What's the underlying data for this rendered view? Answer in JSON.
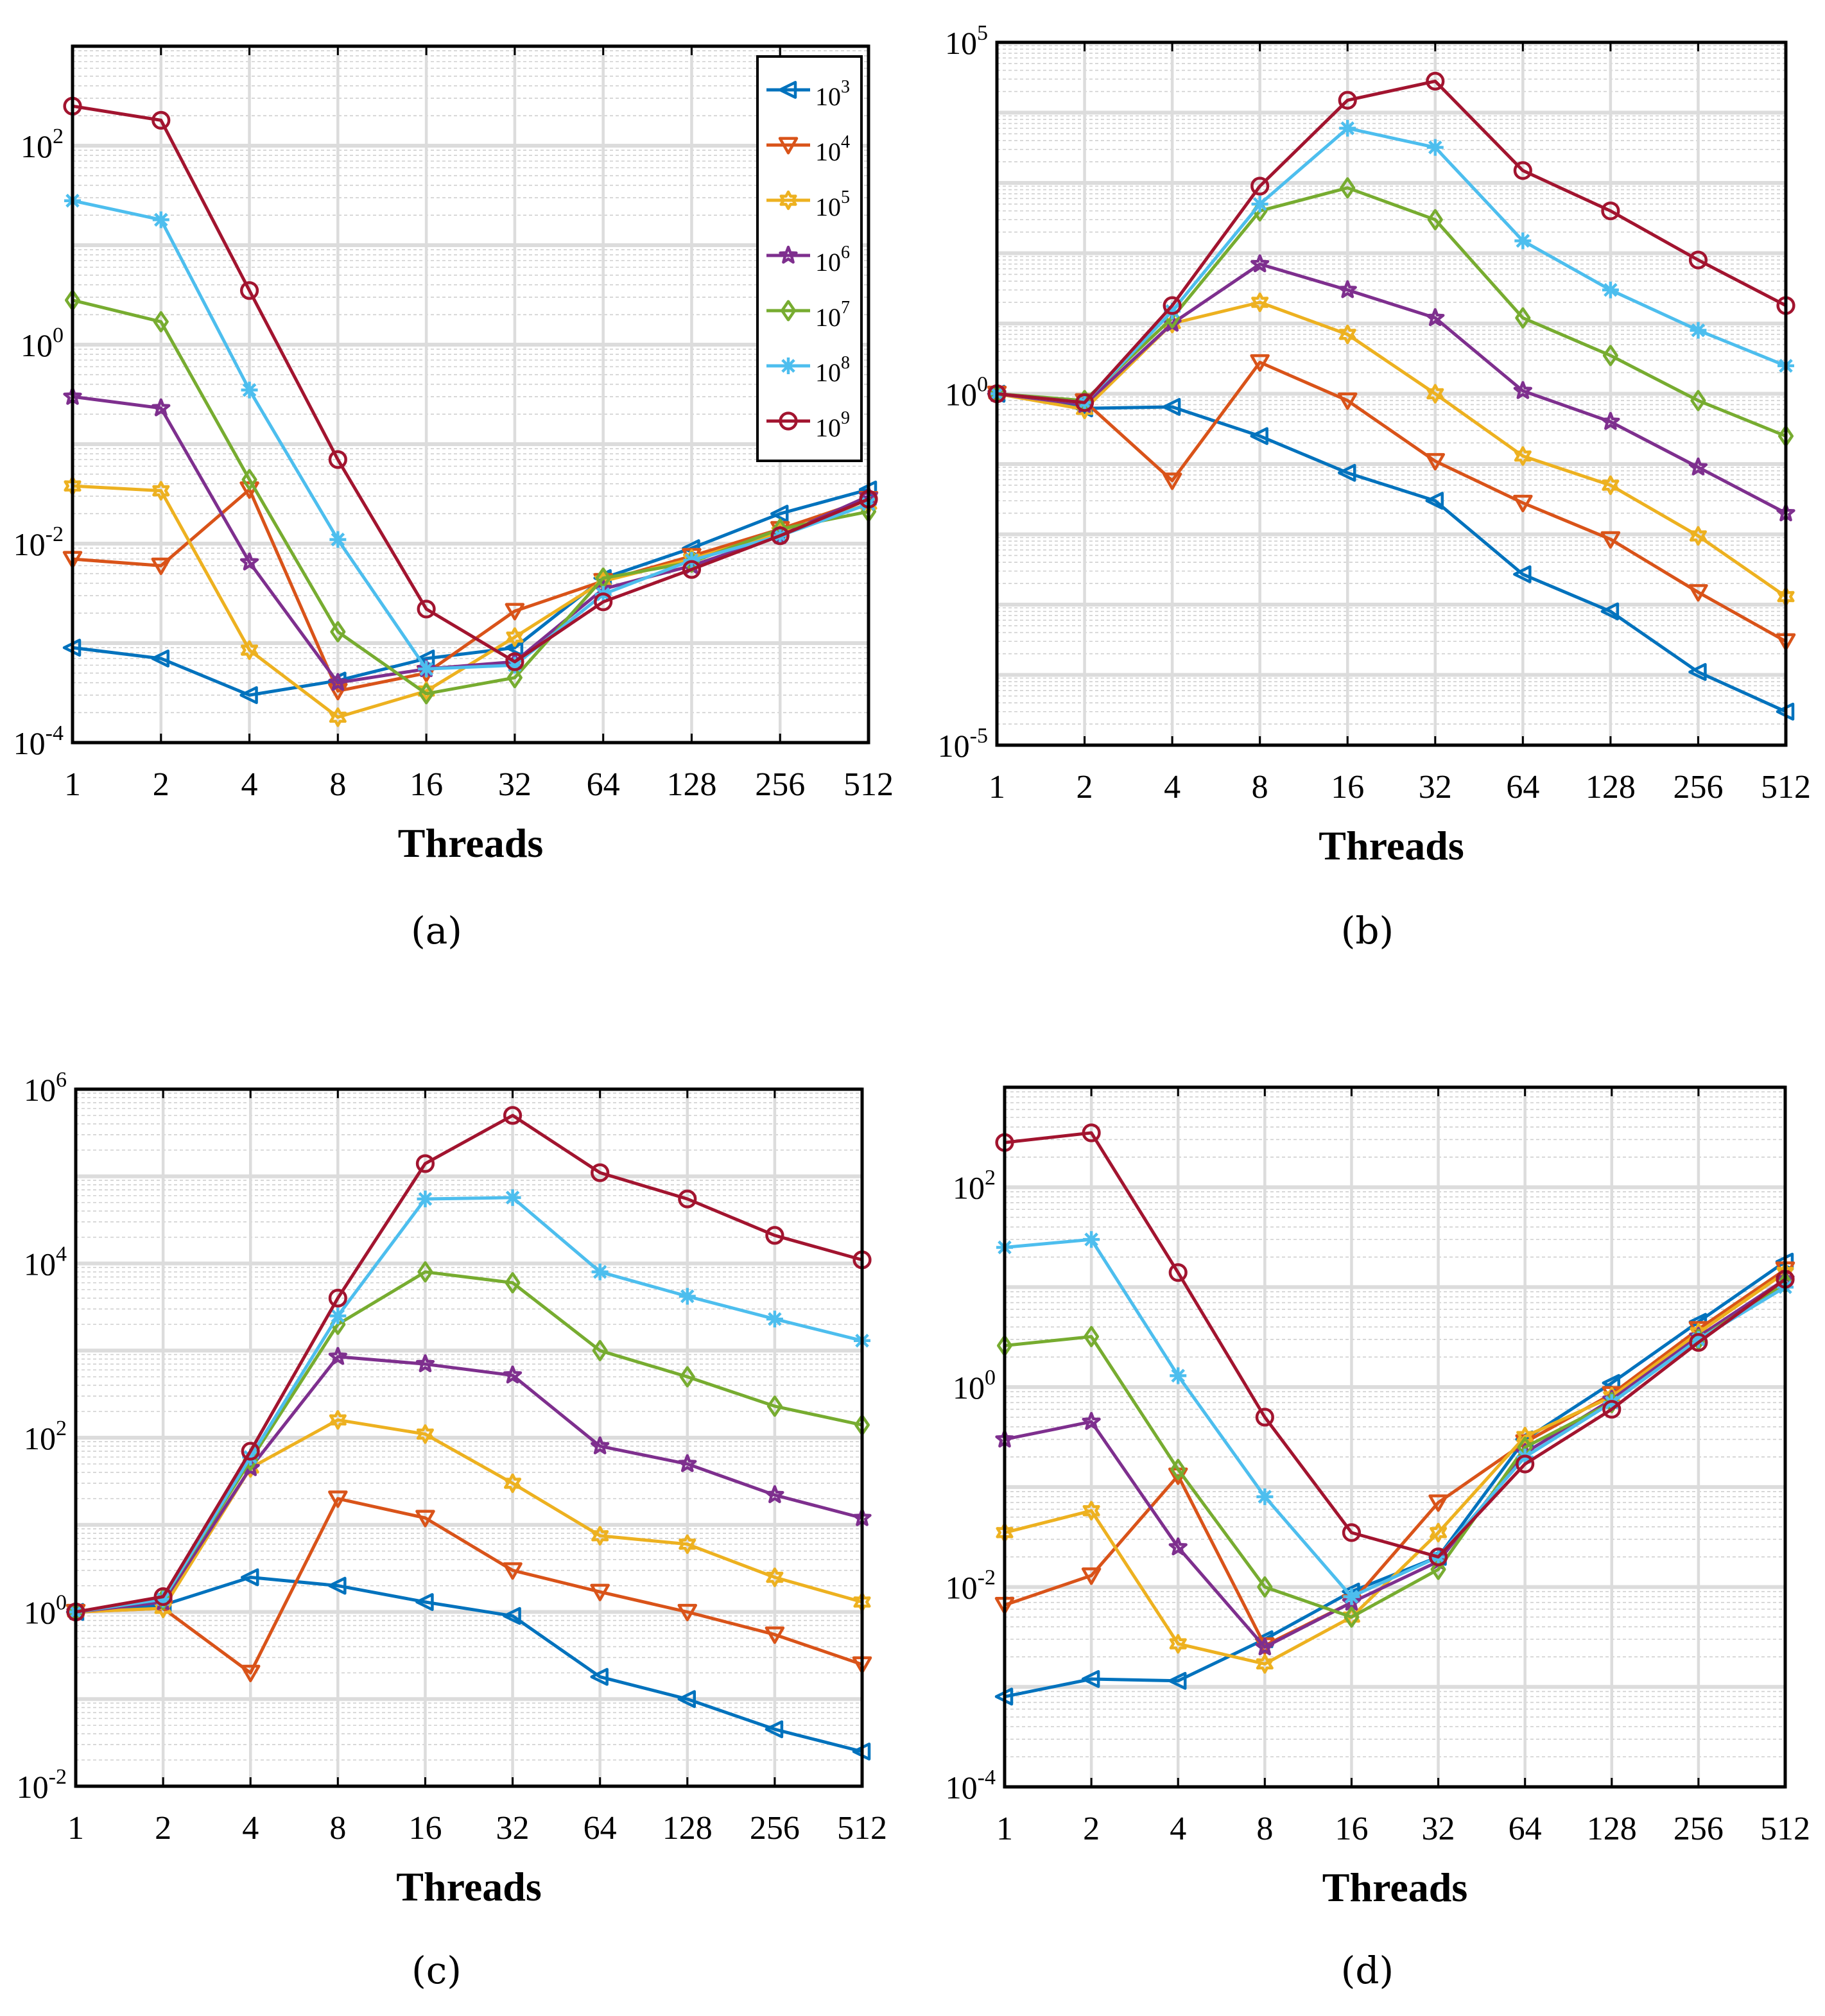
{
  "legend": {
    "position": "top-right of panel (a)",
    "entries": [
      {
        "base": "10",
        "exp": "3",
        "color": "#0072BD",
        "marker": "triangle-left"
      },
      {
        "base": "10",
        "exp": "4",
        "color": "#D95319",
        "marker": "triangle-down"
      },
      {
        "base": "10",
        "exp": "5",
        "color": "#EDB120",
        "marker": "hexagram"
      },
      {
        "base": "10",
        "exp": "6",
        "color": "#7E2F8E",
        "marker": "pentagram"
      },
      {
        "base": "10",
        "exp": "7",
        "color": "#77AC30",
        "marker": "diamond"
      },
      {
        "base": "10",
        "exp": "8",
        "color": "#4DBEEE",
        "marker": "asterisk"
      },
      {
        "base": "10",
        "exp": "9",
        "color": "#A2142F",
        "marker": "circle"
      }
    ]
  },
  "chart_data": [
    {
      "type": "line",
      "panel_label": "(a)",
      "xlabel": "Threads",
      "ylabel": "",
      "x": [
        1,
        2,
        4,
        8,
        16,
        32,
        64,
        128,
        256,
        512
      ],
      "x_tick_labels": [
        "1",
        "2",
        "4",
        "8",
        "16",
        "32",
        "64",
        "128",
        "256",
        "512"
      ],
      "yscale": "log",
      "ylim": [
        0.0001,
        1000
      ],
      "y_ticks": [
        {
          "base": "10",
          "exp": "-4",
          "value": 0.0001
        },
        {
          "base": "10",
          "exp": "-2",
          "value": 0.01
        },
        {
          "base": "10",
          "exp": "0",
          "value": 1
        },
        {
          "base": "10",
          "exp": "2",
          "value": 100
        }
      ],
      "grid": true,
      "series": [
        {
          "values": [
            0.0009,
            0.0007,
            0.0003,
            0.00042,
            0.0007,
            0.0009,
            0.0045,
            0.009,
            0.02,
            0.035
          ]
        },
        {
          "values": [
            0.007,
            0.006,
            0.035,
            0.00033,
            0.0005,
            0.0021,
            0.0042,
            0.0075,
            0.014,
            0.028
          ]
        },
        {
          "values": [
            0.038,
            0.034,
            0.00085,
            0.00018,
            0.00033,
            0.00115,
            0.0042,
            0.007,
            0.013,
            0.025
          ]
        },
        {
          "values": [
            0.3,
            0.23,
            0.0065,
            0.0004,
            0.00055,
            0.00065,
            0.0035,
            0.006,
            0.012,
            0.03
          ]
        },
        {
          "values": [
            2.8,
            1.7,
            0.044,
            0.0013,
            0.00031,
            0.00045,
            0.0045,
            0.0065,
            0.014,
            0.021
          ]
        },
        {
          "values": [
            28,
            18,
            0.35,
            0.011,
            0.00055,
            0.0006,
            0.0031,
            0.0068,
            0.012,
            0.025
          ]
        },
        {
          "values": [
            250,
            180,
            3.5,
            0.07,
            0.0022,
            0.00065,
            0.0026,
            0.0055,
            0.012,
            0.028
          ]
        }
      ]
    },
    {
      "type": "line",
      "panel_label": "(b)",
      "xlabel": "Threads",
      "ylabel": "",
      "x": [
        1,
        2,
        4,
        8,
        16,
        32,
        64,
        128,
        256,
        512
      ],
      "x_tick_labels": [
        "1",
        "2",
        "4",
        "8",
        "16",
        "32",
        "64",
        "128",
        "256",
        "512"
      ],
      "yscale": "log",
      "ylim": [
        1e-05,
        100000
      ],
      "y_ticks": [
        {
          "base": "10",
          "exp": "-5",
          "value": 1e-05
        },
        {
          "base": "10",
          "exp": "0",
          "value": 1
        },
        {
          "base": "10",
          "exp": "5",
          "value": 100000
        }
      ],
      "grid": true,
      "series": [
        {
          "values": [
            1,
            0.62,
            0.65,
            0.25,
            0.075,
            0.03,
            0.0027,
            0.0008,
            0.00011,
            3e-05
          ]
        },
        {
          "values": [
            1,
            0.78,
            0.058,
            2.8,
            0.8,
            0.11,
            0.028,
            0.0085,
            0.0015,
            0.0003
          ]
        },
        {
          "values": [
            1,
            0.6,
            10,
            20,
            7,
            1,
            0.13,
            0.05,
            0.0095,
            0.0013
          ]
        },
        {
          "values": [
            1,
            0.7,
            10,
            70,
            30,
            12,
            1.1,
            0.4,
            0.09,
            0.02
          ]
        },
        {
          "values": [
            1,
            0.8,
            12,
            400,
            850,
            300,
            12,
            3.5,
            0.8,
            0.25
          ]
        },
        {
          "values": [
            1,
            0.75,
            15,
            500,
            6000,
            3200,
            150,
            30,
            8,
            2.5
          ]
        },
        {
          "values": [
            1,
            0.75,
            18,
            900,
            15000,
            28000,
            1500,
            400,
            80,
            18
          ]
        }
      ]
    },
    {
      "type": "line",
      "panel_label": "(c)",
      "xlabel": "Threads",
      "ylabel": "",
      "x": [
        1,
        2,
        4,
        8,
        16,
        32,
        64,
        128,
        256,
        512
      ],
      "x_tick_labels": [
        "1",
        "2",
        "4",
        "8",
        "16",
        "32",
        "64",
        "128",
        "256",
        "512"
      ],
      "yscale": "log",
      "ylim": [
        0.01,
        1000000
      ],
      "y_ticks": [
        {
          "base": "10",
          "exp": "-2",
          "value": 0.01
        },
        {
          "base": "10",
          "exp": "0",
          "value": 1
        },
        {
          "base": "10",
          "exp": "2",
          "value": 100
        },
        {
          "base": "10",
          "exp": "4",
          "value": 10000
        },
        {
          "base": "10",
          "exp": "6",
          "value": 1000000
        }
      ],
      "grid": true,
      "series": [
        {
          "values": [
            1,
            1.2,
            2.5,
            2,
            1.3,
            0.9,
            0.18,
            0.1,
            0.045,
            0.025
          ]
        },
        {
          "values": [
            1,
            1.1,
            0.2,
            20,
            12,
            3,
            1.7,
            1,
            0.55,
            0.25
          ]
        },
        {
          "values": [
            1,
            1.1,
            45,
            160,
            110,
            30,
            7.5,
            6,
            2.5,
            1.3
          ]
        },
        {
          "values": [
            1,
            1.3,
            45,
            850,
            700,
            520,
            80,
            50,
            22,
            12
          ]
        },
        {
          "values": [
            1,
            1.4,
            55,
            2000,
            8000,
            6000,
            1000,
            500,
            230,
            140
          ]
        },
        {
          "values": [
            1,
            1.4,
            60,
            2500,
            55000,
            57000,
            8000,
            4200,
            2300,
            1300
          ]
        },
        {
          "values": [
            1,
            1.5,
            70,
            4000,
            140000,
            500000,
            110000,
            55000,
            21000,
            11000
          ]
        }
      ]
    },
    {
      "type": "line",
      "panel_label": "(d)",
      "xlabel": "Threads",
      "ylabel": "",
      "x": [
        1,
        2,
        4,
        8,
        16,
        32,
        64,
        128,
        256,
        512
      ],
      "x_tick_labels": [
        "1",
        "2",
        "4",
        "8",
        "16",
        "32",
        "64",
        "128",
        "256",
        "512"
      ],
      "yscale": "log",
      "ylim": [
        0.0001,
        1000
      ],
      "y_ticks": [
        {
          "base": "10",
          "exp": "-4",
          "value": 0.0001
        },
        {
          "base": "10",
          "exp": "-2",
          "value": 0.01
        },
        {
          "base": "10",
          "exp": "0",
          "value": 1
        },
        {
          "base": "10",
          "exp": "2",
          "value": 100
        }
      ],
      "grid": true,
      "series": [
        {
          "values": [
            0.0008,
            0.0012,
            0.00115,
            0.003,
            0.009,
            0.02,
            0.3,
            1.1,
            4.5,
            18
          ]
        },
        {
          "values": [
            0.0066,
            0.013,
            0.13,
            0.0026,
            0.007,
            0.07,
            0.28,
            0.85,
            3.8,
            15
          ]
        },
        {
          "values": [
            0.035,
            0.058,
            0.0027,
            0.0017,
            0.005,
            0.035,
            0.32,
            0.8,
            3.5,
            14
          ]
        },
        {
          "values": [
            0.3,
            0.45,
            0.025,
            0.0025,
            0.007,
            0.018,
            0.22,
            0.75,
            3.2,
            12
          ]
        },
        {
          "values": [
            2.6,
            3.2,
            0.15,
            0.01,
            0.005,
            0.015,
            0.25,
            0.7,
            3,
            11
          ]
        },
        {
          "values": [
            25,
            30,
            1.3,
            0.08,
            0.008,
            0.02,
            0.2,
            0.7,
            3,
            10
          ]
        },
        {
          "values": [
            280,
            350,
            14,
            0.5,
            0.035,
            0.02,
            0.17,
            0.6,
            2.8,
            12
          ]
        }
      ]
    }
  ]
}
